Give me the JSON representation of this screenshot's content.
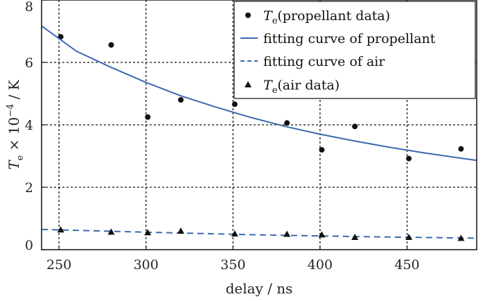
{
  "chart_data": {
    "type": "scatter",
    "xlabel": "delay / ns",
    "ylabel": {
      "symbol": "T",
      "subscript": "e",
      "multiplier": " × 10",
      "exponent": "−4",
      "unit": " / K"
    },
    "xlim": [
      240,
      490
    ],
    "ylim": [
      0,
      8
    ],
    "x_ticks": [
      250,
      300,
      350,
      400,
      450
    ],
    "y_ticks": [
      0,
      2,
      4,
      6,
      8
    ],
    "grid": true,
    "legend_position": "top-right",
    "series": [
      {
        "name": "propellant data",
        "legend_symbol": "T",
        "legend_sub": "e",
        "legend_rest": "(propellant data)",
        "marker": "circle",
        "color": "#111111",
        "x": [
          251,
          280,
          301,
          320,
          351,
          381,
          401,
          420,
          451,
          481
        ],
        "y": [
          6.82,
          6.56,
          4.25,
          4.8,
          4.66,
          4.06,
          3.2,
          3.95,
          2.92,
          3.23
        ]
      },
      {
        "name": "fitting curve of propellant",
        "legend_text": "fitting curve of propellant",
        "line": "solid",
        "color": "#3b67b0",
        "x": [
          240,
          260,
          280,
          300,
          320,
          340,
          360,
          380,
          400,
          420,
          440,
          460,
          480,
          490
        ],
        "y": [
          7.17,
          6.36,
          5.84,
          5.36,
          4.93,
          4.57,
          4.24,
          3.95,
          3.7,
          3.48,
          3.28,
          3.1,
          2.94,
          2.86
        ]
      },
      {
        "name": "fitting curve of air",
        "legend_text": "fitting curve of air",
        "line": "dashed",
        "color": "#3b67b0",
        "x": [
          240,
          300,
          360,
          420,
          490
        ],
        "y": [
          0.65,
          0.56,
          0.48,
          0.42,
          0.37
        ]
      },
      {
        "name": "air data",
        "legend_symbol": "T",
        "legend_sub": "e",
        "legend_rest": "(air data)",
        "marker": "triangle",
        "color": "#111111",
        "x": [
          251,
          280,
          301,
          320,
          351,
          381,
          401,
          420,
          451,
          481
        ],
        "y": [
          0.64,
          0.57,
          0.55,
          0.6,
          0.51,
          0.5,
          0.48,
          0.4,
          0.4,
          0.37
        ]
      }
    ]
  }
}
